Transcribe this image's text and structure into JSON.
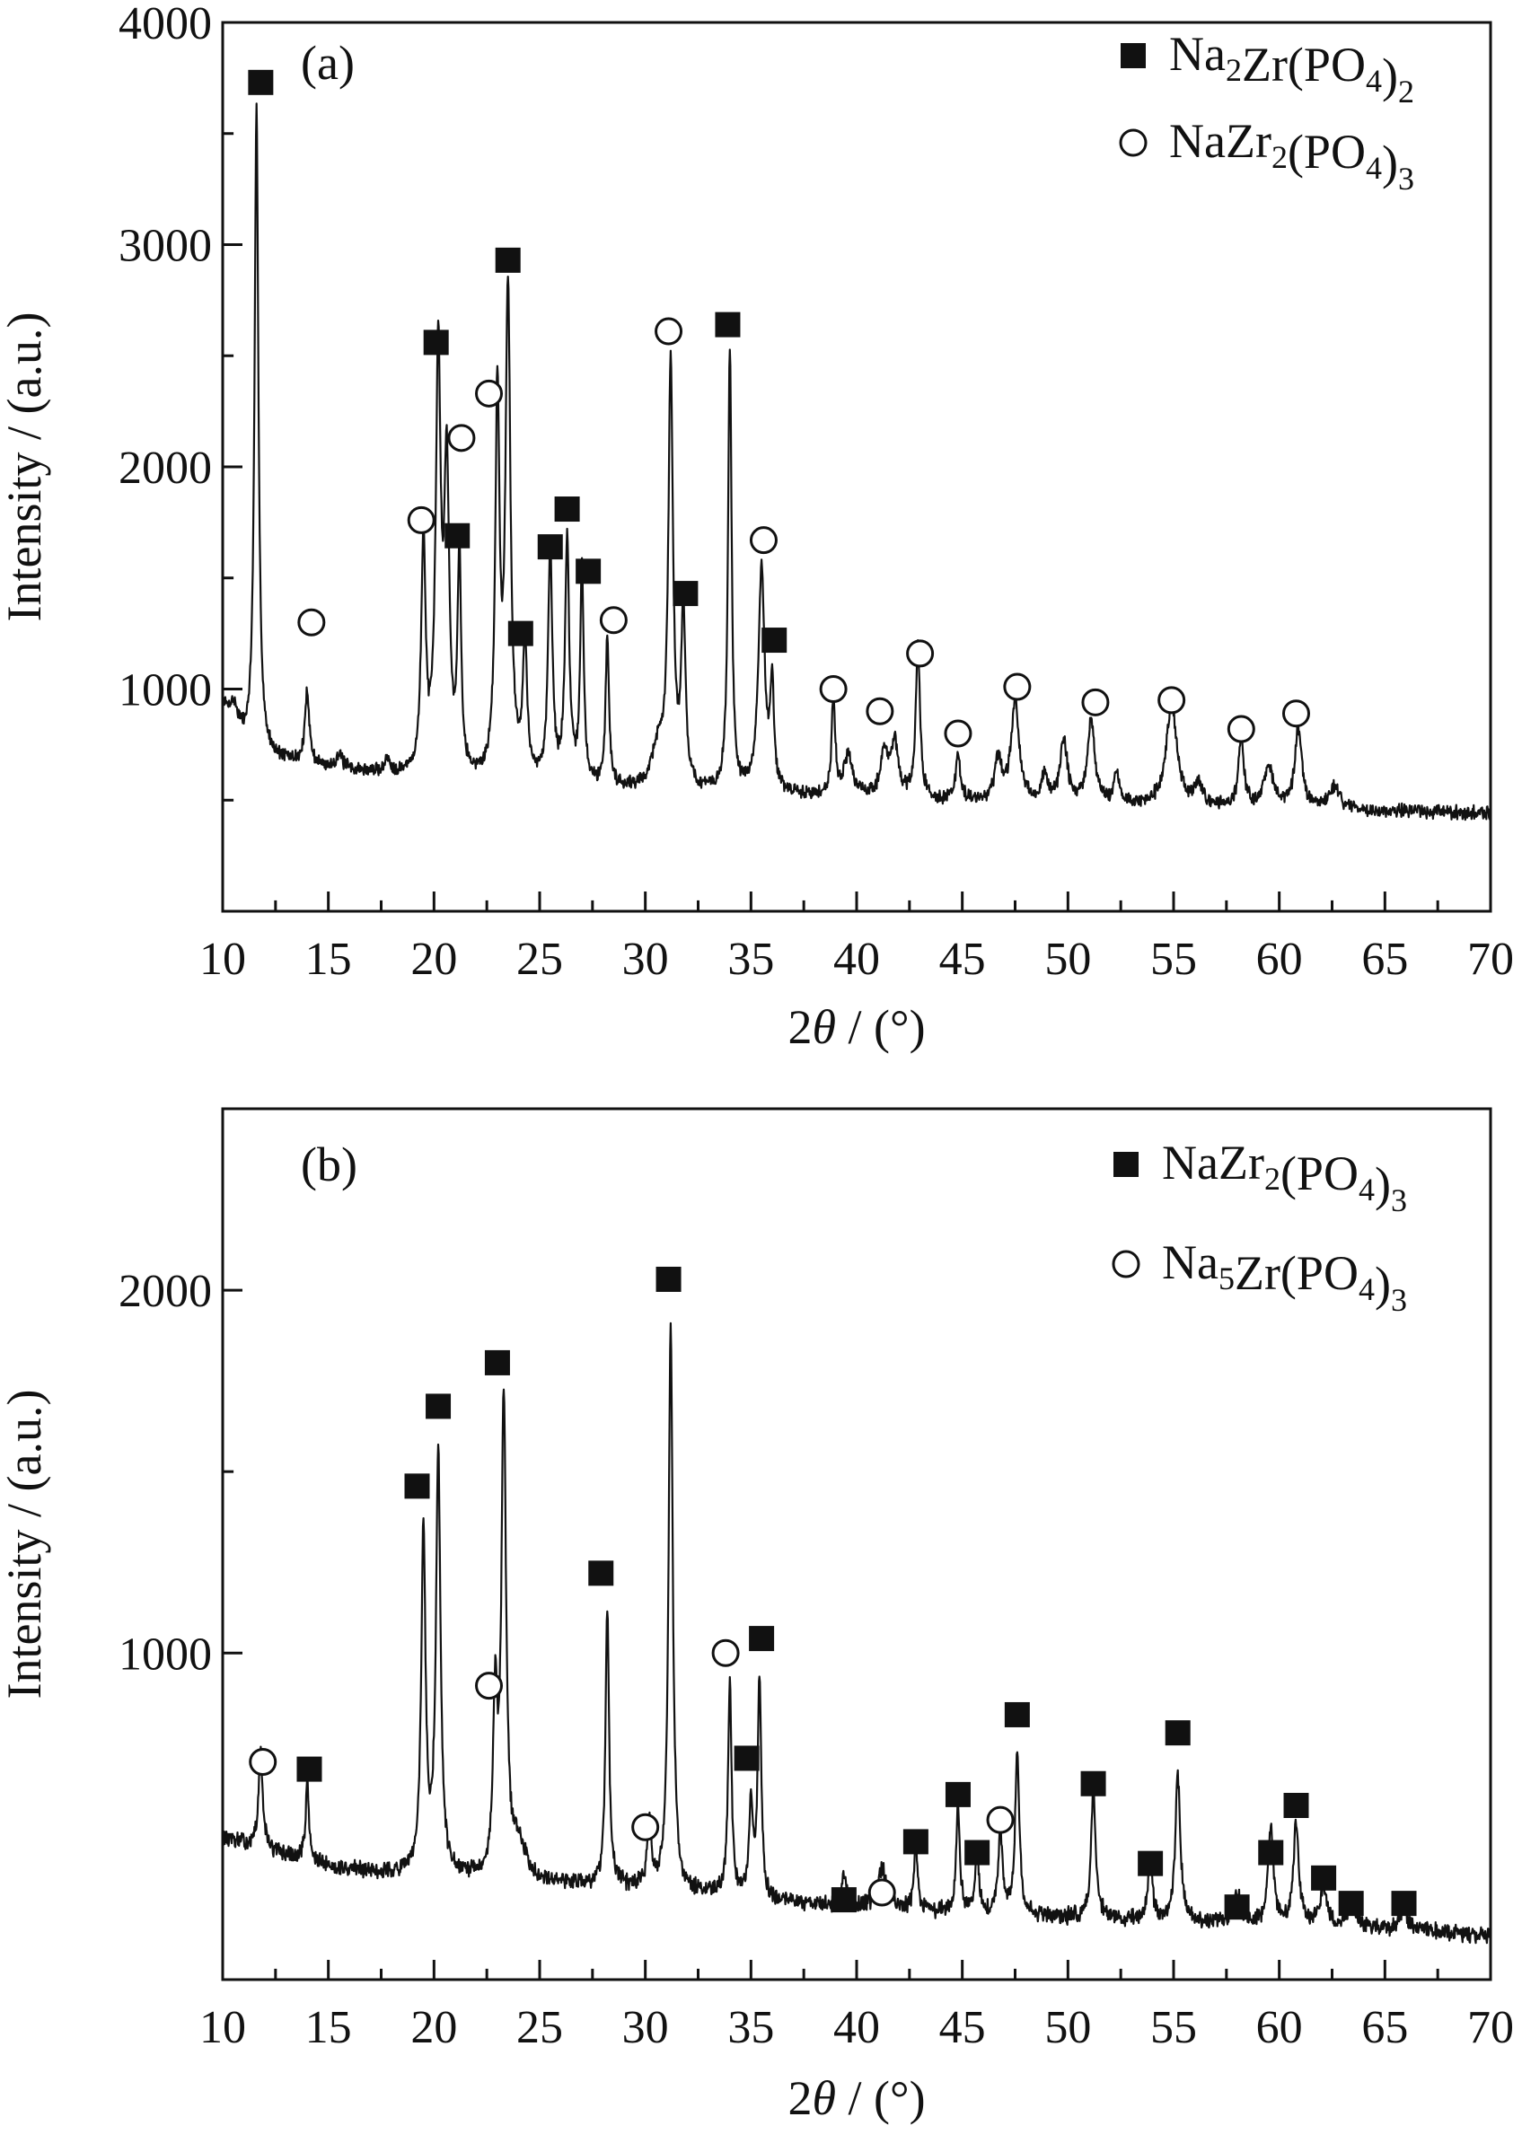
{
  "chart_data": [
    {
      "type": "line",
      "panel_label": "(a)",
      "xlabel": "2θ / (°)",
      "xlabel_parts": [
        "2",
        "θ",
        " / (°)"
      ],
      "ylabel": "Intensity / (a.u.)",
      "xlim": [
        10,
        70
      ],
      "ylim": [
        0,
        4000
      ],
      "x_ticks": [
        10,
        15,
        20,
        25,
        30,
        35,
        40,
        45,
        50,
        55,
        60,
        65,
        70
      ],
      "y_ticks": [
        1000,
        2000,
        3000,
        4000
      ],
      "y_minor_ticks": [
        500,
        1500,
        2500,
        3500
      ],
      "grid": false,
      "legend_position": "top-right",
      "legend": [
        {
          "marker": "filled-square",
          "parts": [
            [
              "Na",
              "n"
            ],
            [
              "2",
              "sub"
            ],
            [
              "Zr(PO",
              "n"
            ],
            [
              "4",
              "sub"
            ],
            [
              ")",
              "n"
            ],
            [
              "2",
              "sub"
            ]
          ]
        },
        {
          "marker": "open-circle",
          "parts": [
            [
              "NaZr",
              "n"
            ],
            [
              "2",
              "sub"
            ],
            [
              "(PO",
              "n"
            ],
            [
              "4",
              "sub"
            ],
            [
              ")",
              "n"
            ],
            [
              "3",
              "sub"
            ]
          ]
        }
      ],
      "series": [
        {
          "color": "#111111",
          "baseline": [
            [
              10,
              720
            ],
            [
              15,
              640
            ],
            [
              20,
              590
            ],
            [
              25,
              560
            ],
            [
              30,
              540
            ],
            [
              35,
              520
            ],
            [
              40,
              510
            ],
            [
              45,
              490
            ],
            [
              50,
              480
            ],
            [
              55,
              470
            ],
            [
              60,
              460
            ],
            [
              65,
              450
            ],
            [
              70,
              440
            ]
          ],
          "noise": 24,
          "seed": 7,
          "peaks": [
            [
              10.0,
              150,
              0.25
            ],
            [
              10.5,
              180,
              0.35
            ],
            [
              11.6,
              2900,
              0.11
            ],
            [
              14.0,
              330,
              0.12
            ],
            [
              15.5,
              60,
              0.2
            ],
            [
              17.8,
              60,
              0.15
            ],
            [
              19.5,
              1060,
              0.12
            ],
            [
              20.2,
              1870,
              0.14
            ],
            [
              20.6,
              1350,
              0.14
            ],
            [
              21.2,
              980,
              0.1
            ],
            [
              23.0,
              1700,
              0.12
            ],
            [
              23.5,
              2180,
              0.14
            ],
            [
              24.3,
              620,
              0.12
            ],
            [
              25.5,
              1060,
              0.12
            ],
            [
              26.3,
              1080,
              0.12
            ],
            [
              27.0,
              970,
              0.1
            ],
            [
              28.2,
              660,
              0.1
            ],
            [
              30.6,
              180,
              0.35
            ],
            [
              31.2,
              1900,
              0.13
            ],
            [
              31.8,
              800,
              0.12
            ],
            [
              34.0,
              2000,
              0.1
            ],
            [
              35.5,
              1000,
              0.18
            ],
            [
              36.0,
              480,
              0.1
            ],
            [
              38.9,
              440,
              0.1
            ],
            [
              39.6,
              180,
              0.25
            ],
            [
              41.3,
              200,
              0.2
            ],
            [
              41.8,
              250,
              0.2
            ],
            [
              42.9,
              700,
              0.12
            ],
            [
              44.8,
              220,
              0.12
            ],
            [
              46.7,
              180,
              0.2
            ],
            [
              47.5,
              450,
              0.22
            ],
            [
              48.9,
              130,
              0.15
            ],
            [
              49.8,
              280,
              0.2
            ],
            [
              51.1,
              380,
              0.2
            ],
            [
              52.3,
              140,
              0.15
            ],
            [
              54.9,
              450,
              0.3
            ],
            [
              56.2,
              100,
              0.2
            ],
            [
              58.2,
              300,
              0.15
            ],
            [
              59.5,
              170,
              0.3
            ],
            [
              60.9,
              350,
              0.2
            ],
            [
              62.6,
              100,
              0.3
            ]
          ]
        }
      ],
      "markers": [
        {
          "symbol": "square",
          "x": 11.8,
          "y": 3730
        },
        {
          "symbol": "circle",
          "x": 14.2,
          "y": 1300
        },
        {
          "symbol": "circle",
          "x": 19.4,
          "y": 1760
        },
        {
          "symbol": "square",
          "x": 20.1,
          "y": 2560
        },
        {
          "symbol": "circle",
          "x": 21.3,
          "y": 2130
        },
        {
          "symbol": "square",
          "x": 21.1,
          "y": 1690
        },
        {
          "symbol": "circle",
          "x": 22.6,
          "y": 2330
        },
        {
          "symbol": "square",
          "x": 23.5,
          "y": 2930
        },
        {
          "symbol": "square",
          "x": 24.1,
          "y": 1250
        },
        {
          "symbol": "square",
          "x": 25.5,
          "y": 1640
        },
        {
          "symbol": "square",
          "x": 26.3,
          "y": 1810
        },
        {
          "symbol": "square",
          "x": 27.3,
          "y": 1530
        },
        {
          "symbol": "circle",
          "x": 28.5,
          "y": 1310
        },
        {
          "symbol": "circle",
          "x": 31.1,
          "y": 2610
        },
        {
          "symbol": "square",
          "x": 31.9,
          "y": 1430
        },
        {
          "symbol": "square",
          "x": 33.9,
          "y": 2640
        },
        {
          "symbol": "circle",
          "x": 35.6,
          "y": 1670
        },
        {
          "symbol": "square",
          "x": 36.1,
          "y": 1220
        },
        {
          "symbol": "circle",
          "x": 38.9,
          "y": 1000
        },
        {
          "symbol": "circle",
          "x": 41.1,
          "y": 900
        },
        {
          "symbol": "circle",
          "x": 43.0,
          "y": 1160
        },
        {
          "symbol": "circle",
          "x": 44.8,
          "y": 800
        },
        {
          "symbol": "circle",
          "x": 47.6,
          "y": 1010
        },
        {
          "symbol": "circle",
          "x": 51.3,
          "y": 940
        },
        {
          "symbol": "circle",
          "x": 54.9,
          "y": 950
        },
        {
          "symbol": "circle",
          "x": 58.2,
          "y": 820
        },
        {
          "symbol": "circle",
          "x": 60.8,
          "y": 890
        }
      ]
    },
    {
      "type": "line",
      "panel_label": "(b)",
      "xlabel": "2θ / (°)",
      "xlabel_parts": [
        "2",
        "θ",
        " / (°)"
      ],
      "ylabel": "Intensity / (a.u.)",
      "xlim": [
        10,
        70
      ],
      "ylim": [
        100,
        2500
      ],
      "x_ticks": [
        10,
        15,
        20,
        25,
        30,
        35,
        40,
        45,
        50,
        55,
        60,
        65,
        70
      ],
      "y_ticks": [
        1000,
        2000
      ],
      "y_minor_ticks": [
        500,
        1500
      ],
      "grid": false,
      "legend_position": "top-right",
      "legend": [
        {
          "marker": "filled-square",
          "parts": [
            [
              "NaZr",
              "n"
            ],
            [
              "2",
              "sub"
            ],
            [
              "(PO",
              "n"
            ],
            [
              "4",
              "sub"
            ],
            [
              ")",
              "n"
            ],
            [
              "3",
              "sub"
            ]
          ]
        },
        {
          "marker": "open-circle",
          "parts": [
            [
              "Na",
              "n"
            ],
            [
              "5",
              "sub"
            ],
            [
              "Zr(PO",
              "n"
            ],
            [
              "4",
              "sub"
            ],
            [
              ")",
              "n"
            ],
            [
              "3",
              "sub"
            ]
          ]
        }
      ],
      "series": [
        {
          "color": "#111111",
          "baseline": [
            [
              10,
              490
            ],
            [
              15,
              410
            ],
            [
              20,
              380
            ],
            [
              25,
              370
            ],
            [
              30,
              350
            ],
            [
              35,
              320
            ],
            [
              40,
              300
            ],
            [
              45,
              280
            ],
            [
              50,
              270
            ],
            [
              55,
              260
            ],
            [
              60,
              250
            ],
            [
              65,
              240
            ],
            [
              70,
              220
            ]
          ],
          "noise": 18,
          "seed": 13,
          "peaks": [
            [
              11.8,
              260,
              0.12
            ],
            [
              14.0,
              210,
              0.1
            ],
            [
              19.5,
              950,
              0.12
            ],
            [
              20.2,
              1160,
              0.13
            ],
            [
              22.9,
              470,
              0.12
            ],
            [
              23.3,
              1310,
              0.13
            ],
            [
              24.0,
              90,
              0.4
            ],
            [
              28.2,
              750,
              0.1
            ],
            [
              30.2,
              170,
              0.12
            ],
            [
              31.2,
              1550,
              0.12
            ],
            [
              34.0,
              590,
              0.1
            ],
            [
              35.0,
              260,
              0.1
            ],
            [
              35.4,
              610,
              0.1
            ],
            [
              39.4,
              80,
              0.15
            ],
            [
              41.2,
              110,
              0.25
            ],
            [
              42.8,
              180,
              0.1
            ],
            [
              44.8,
              310,
              0.1
            ],
            [
              45.7,
              190,
              0.1
            ],
            [
              46.8,
              240,
              0.12
            ],
            [
              47.6,
              450,
              0.12
            ],
            [
              51.2,
              360,
              0.13
            ],
            [
              53.9,
              170,
              0.12
            ],
            [
              55.2,
              400,
              0.14
            ],
            [
              58.0,
              80,
              0.2
            ],
            [
              59.6,
              270,
              0.15
            ],
            [
              60.8,
              280,
              0.15
            ],
            [
              62.1,
              100,
              0.2
            ],
            [
              63.4,
              70,
              0.2
            ],
            [
              65.9,
              60,
              0.2
            ]
          ]
        }
      ],
      "markers": [
        {
          "symbol": "circle",
          "x": 11.9,
          "y": 700
        },
        {
          "symbol": "square",
          "x": 14.1,
          "y": 680
        },
        {
          "symbol": "square",
          "x": 19.2,
          "y": 1460
        },
        {
          "symbol": "square",
          "x": 20.2,
          "y": 1680
        },
        {
          "symbol": "circle",
          "x": 22.6,
          "y": 910
        },
        {
          "symbol": "square",
          "x": 23.0,
          "y": 1800
        },
        {
          "symbol": "square",
          "x": 27.9,
          "y": 1220
        },
        {
          "symbol": "circle",
          "x": 30.0,
          "y": 520
        },
        {
          "symbol": "square",
          "x": 31.1,
          "y": 2030
        },
        {
          "symbol": "circle",
          "x": 33.8,
          "y": 1000
        },
        {
          "symbol": "square",
          "x": 34.8,
          "y": 710
        },
        {
          "symbol": "square",
          "x": 35.5,
          "y": 1040
        },
        {
          "symbol": "square",
          "x": 39.4,
          "y": 320
        },
        {
          "symbol": "circle",
          "x": 41.2,
          "y": 340
        },
        {
          "symbol": "square",
          "x": 42.8,
          "y": 480
        },
        {
          "symbol": "square",
          "x": 44.8,
          "y": 610
        },
        {
          "symbol": "square",
          "x": 45.7,
          "y": 450
        },
        {
          "symbol": "circle",
          "x": 46.8,
          "y": 540
        },
        {
          "symbol": "square",
          "x": 47.6,
          "y": 830
        },
        {
          "symbol": "square",
          "x": 51.2,
          "y": 640
        },
        {
          "symbol": "square",
          "x": 53.9,
          "y": 420
        },
        {
          "symbol": "square",
          "x": 55.2,
          "y": 780
        },
        {
          "symbol": "square",
          "x": 58.0,
          "y": 300
        },
        {
          "symbol": "square",
          "x": 59.6,
          "y": 450
        },
        {
          "symbol": "square",
          "x": 60.8,
          "y": 580
        },
        {
          "symbol": "square",
          "x": 62.1,
          "y": 380
        },
        {
          "symbol": "square",
          "x": 63.4,
          "y": 310
        },
        {
          "symbol": "square",
          "x": 65.9,
          "y": 310
        }
      ]
    }
  ]
}
